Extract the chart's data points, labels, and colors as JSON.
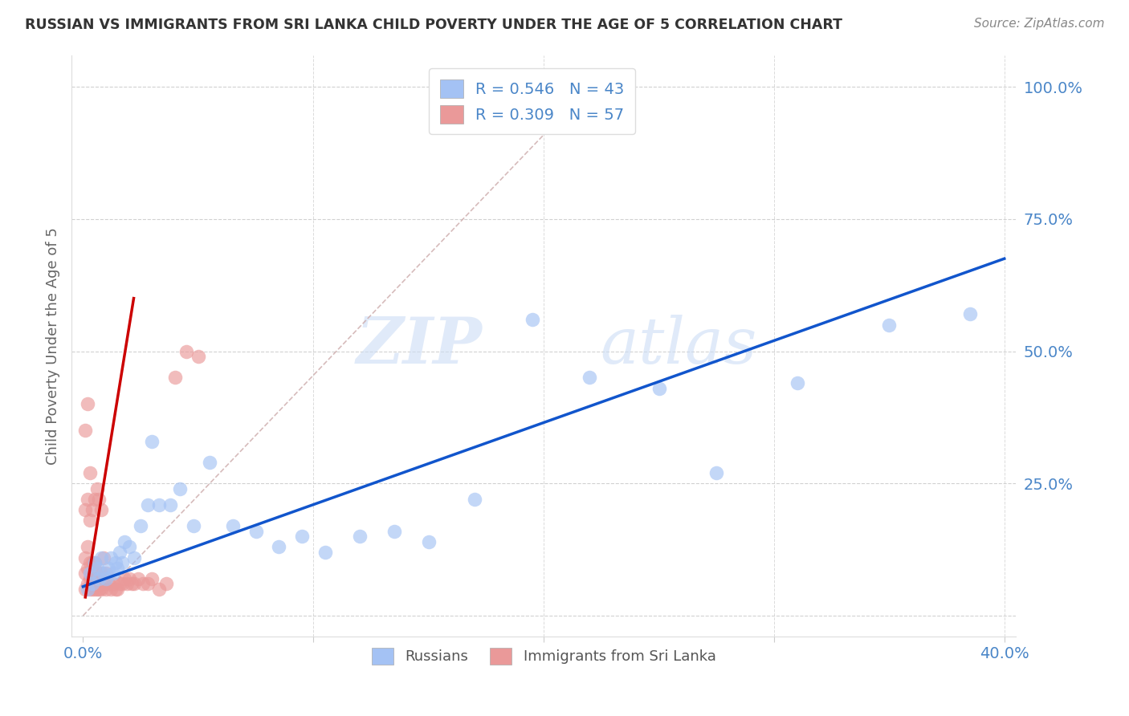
{
  "title": "RUSSIAN VS IMMIGRANTS FROM SRI LANKA CHILD POVERTY UNDER THE AGE OF 5 CORRELATION CHART",
  "source": "Source: ZipAtlas.com",
  "ylabel": "Child Poverty Under the Age of 5",
  "xlim": [
    -0.005,
    0.405
  ],
  "ylim": [
    -0.04,
    1.06
  ],
  "blue_color": "#a4c2f4",
  "pink_color": "#ea9999",
  "blue_line_color": "#1155cc",
  "pink_line_color": "#cc0000",
  "blue_R": 0.546,
  "blue_N": 43,
  "pink_R": 0.309,
  "pink_N": 57,
  "legend_label_blue": "Russians",
  "legend_label_pink": "Immigrants from Sri Lanka",
  "watermark_zip": "ZIP",
  "watermark_atlas": "atlas",
  "background_color": "#ffffff",
  "tick_color": "#4a86c8",
  "blue_scatter_x": [
    0.002,
    0.003,
    0.004,
    0.005,
    0.006,
    0.007,
    0.008,
    0.009,
    0.01,
    0.011,
    0.012,
    0.013,
    0.014,
    0.015,
    0.016,
    0.017,
    0.018,
    0.02,
    0.022,
    0.025,
    0.028,
    0.03,
    0.033,
    0.038,
    0.042,
    0.048,
    0.055,
    0.065,
    0.075,
    0.085,
    0.095,
    0.105,
    0.12,
    0.135,
    0.15,
    0.17,
    0.195,
    0.22,
    0.25,
    0.275,
    0.31,
    0.35,
    0.385
  ],
  "blue_scatter_y": [
    0.05,
    0.08,
    0.06,
    0.1,
    0.09,
    0.07,
    0.11,
    0.08,
    0.07,
    0.09,
    0.11,
    0.08,
    0.1,
    0.09,
    0.12,
    0.1,
    0.14,
    0.13,
    0.11,
    0.17,
    0.21,
    0.33,
    0.21,
    0.21,
    0.24,
    0.17,
    0.29,
    0.17,
    0.16,
    0.13,
    0.15,
    0.12,
    0.15,
    0.16,
    0.14,
    0.22,
    0.56,
    0.45,
    0.43,
    0.27,
    0.44,
    0.55,
    0.57
  ],
  "pink_scatter_x": [
    0.001,
    0.001,
    0.001,
    0.001,
    0.001,
    0.002,
    0.002,
    0.002,
    0.002,
    0.002,
    0.003,
    0.003,
    0.003,
    0.003,
    0.003,
    0.004,
    0.004,
    0.004,
    0.004,
    0.005,
    0.005,
    0.005,
    0.005,
    0.006,
    0.006,
    0.006,
    0.007,
    0.007,
    0.007,
    0.008,
    0.008,
    0.008,
    0.009,
    0.009,
    0.01,
    0.01,
    0.011,
    0.012,
    0.013,
    0.014,
    0.015,
    0.016,
    0.017,
    0.018,
    0.019,
    0.02,
    0.021,
    0.022,
    0.024,
    0.026,
    0.028,
    0.03,
    0.033,
    0.036,
    0.04,
    0.045,
    0.05
  ],
  "pink_scatter_y": [
    0.05,
    0.08,
    0.11,
    0.2,
    0.35,
    0.06,
    0.09,
    0.13,
    0.22,
    0.4,
    0.05,
    0.07,
    0.1,
    0.18,
    0.27,
    0.05,
    0.07,
    0.1,
    0.2,
    0.05,
    0.07,
    0.1,
    0.22,
    0.05,
    0.07,
    0.24,
    0.05,
    0.08,
    0.22,
    0.05,
    0.08,
    0.2,
    0.06,
    0.11,
    0.05,
    0.08,
    0.06,
    0.05,
    0.06,
    0.05,
    0.05,
    0.06,
    0.06,
    0.07,
    0.06,
    0.07,
    0.06,
    0.06,
    0.07,
    0.06,
    0.06,
    0.07,
    0.05,
    0.06,
    0.45,
    0.5,
    0.49
  ],
  "blue_line_x0": 0.0,
  "blue_line_y0": 0.055,
  "blue_line_x1": 0.4,
  "blue_line_y1": 0.675,
  "pink_line_x0": 0.001,
  "pink_line_y0": 0.035,
  "pink_line_x1": 0.022,
  "pink_line_y1": 0.6,
  "dash_line_x0": 0.0,
  "dash_line_y0": 0.0,
  "dash_line_x1": 0.22,
  "dash_line_y1": 1.0
}
